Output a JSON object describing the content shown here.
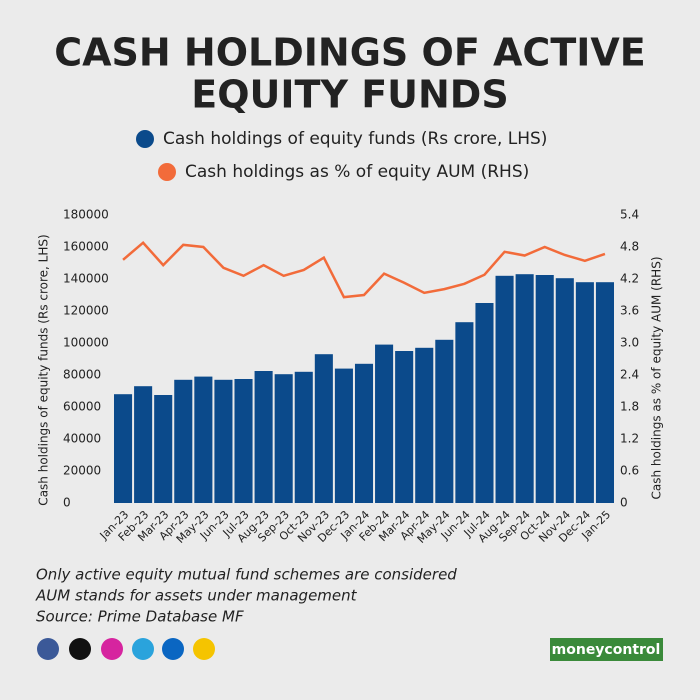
{
  "chart_data": {
    "type": "bar-line",
    "title": [
      "CASH HOLDINGS OF ACTIVE",
      "EQUITY FUNDS"
    ],
    "y_label": "Cash holdings of equity funds (Rs crore, LHS)",
    "y2_label": "Cash holdings as % of equity AUM (RHS)",
    "categories": [
      "Jan-23",
      "Feb-23",
      "Mar-23",
      "Apr-23",
      "May-23",
      "Jun-23",
      "Jul-23",
      "Aug-23",
      "Sep-23",
      "Oct-23",
      "Nov-23",
      "Dec-23",
      "Jan-24",
      "Feb-24",
      "Mar-24",
      "Apr-24",
      "May-24",
      "Jun-24",
      "Jul-24",
      "Aug-24",
      "Sep-24",
      "Oct-24",
      "Nov-24",
      "Dec-24",
      "Jan-25"
    ],
    "series": [
      {
        "name": "Cash holdings of equity funds (Rs crore, LHS)",
        "type": "bar",
        "color": "#0b4a8b",
        "values": [
          68000,
          73000,
          67500,
          77000,
          79000,
          77000,
          77500,
          82500,
          80500,
          82000,
          93000,
          84000,
          87000,
          99000,
          95000,
          97000,
          102000,
          113000,
          125000,
          142000,
          143000,
          142500,
          140500,
          138000,
          138000
        ]
      },
      {
        "name": "Cash holdings as % of equity AUM (RHS)",
        "type": "line",
        "axis": "y2",
        "color": "#f26b3a",
        "values": [
          4.56,
          4.88,
          4.46,
          4.84,
          4.8,
          4.41,
          4.26,
          4.46,
          4.26,
          4.37,
          4.6,
          3.86,
          3.9,
          4.3,
          4.13,
          3.94,
          4.01,
          4.11,
          4.28,
          4.71,
          4.64,
          4.8,
          4.65,
          4.54,
          4.67
        ]
      }
    ],
    "ylim": [
      0,
      180000
    ],
    "yticks": [
      0,
      20000,
      40000,
      60000,
      80000,
      100000,
      120000,
      140000,
      160000,
      180000
    ],
    "y2lim": [
      0,
      5.4
    ],
    "y2ticks": [
      0,
      0.6,
      1.2,
      1.8,
      2.4,
      {
        "value": 3,
        "label": "3.0"
      },
      3.6,
      4.2,
      4.8,
      5.4
    ],
    "notes": [
      "Only active equity mutual fund schemes are considered",
      "AUM stands for assets under management",
      "Source: Prime Database MF"
    ],
    "brand": "moneycontrol"
  }
}
